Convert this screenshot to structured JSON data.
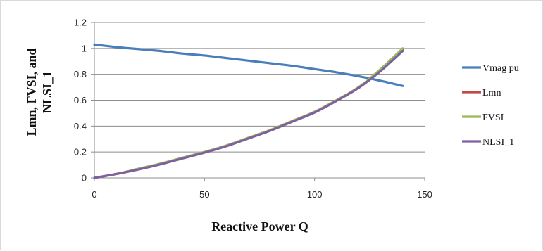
{
  "chart_data": {
    "type": "line",
    "xlabel": "Reactive Power Q",
    "ylabel_lines": [
      "Lmn,  FVSI,   and",
      "NLSI_1"
    ],
    "xlim": [
      0,
      150
    ],
    "ylim": [
      0,
      1.2
    ],
    "x_ticks": [
      0,
      50,
      100,
      150
    ],
    "x_tick_labels": [
      "0",
      "50",
      "100",
      "150"
    ],
    "y_ticks": [
      0,
      0.2,
      0.4,
      0.6,
      0.8,
      1,
      1.2
    ],
    "y_tick_labels": [
      "0",
      "0.2",
      "0.4",
      "0.6",
      "0.8",
      "1",
      "1.2"
    ],
    "grid": "horizontal",
    "legend_position": "right",
    "series": [
      {
        "name": "Vmag pu",
        "color": "#4a7ebb",
        "x": [
          0,
          10,
          20,
          30,
          40,
          50,
          60,
          70,
          80,
          90,
          100,
          110,
          120,
          130,
          140
        ],
        "y": [
          1.03,
          1.01,
          0.995,
          0.98,
          0.96,
          0.945,
          0.925,
          0.905,
          0.885,
          0.865,
          0.84,
          0.815,
          0.785,
          0.75,
          0.71
        ]
      },
      {
        "name": "Lmn",
        "color": "#be4b48",
        "x": [
          0,
          10,
          20,
          30,
          40,
          50,
          60,
          70,
          80,
          90,
          100,
          110,
          120,
          130,
          140
        ],
        "y": [
          0,
          0.03,
          0.07,
          0.11,
          0.155,
          0.2,
          0.25,
          0.31,
          0.37,
          0.44,
          0.51,
          0.6,
          0.7,
          0.83,
          0.99
        ]
      },
      {
        "name": "FVSI",
        "color": "#98b954",
        "x": [
          0,
          10,
          20,
          30,
          40,
          50,
          60,
          70,
          80,
          90,
          100,
          110,
          120,
          130,
          140
        ],
        "y": [
          0,
          0.03,
          0.07,
          0.11,
          0.155,
          0.2,
          0.25,
          0.31,
          0.37,
          0.44,
          0.51,
          0.6,
          0.7,
          0.84,
          1.0
        ]
      },
      {
        "name": "NLSI_1",
        "color": "#7d60a0",
        "x": [
          0,
          10,
          20,
          30,
          40,
          50,
          60,
          70,
          80,
          90,
          100,
          110,
          120,
          130,
          140
        ],
        "y": [
          0,
          0.03,
          0.065,
          0.105,
          0.15,
          0.195,
          0.245,
          0.305,
          0.365,
          0.435,
          0.505,
          0.595,
          0.695,
          0.825,
          0.98
        ]
      }
    ]
  }
}
